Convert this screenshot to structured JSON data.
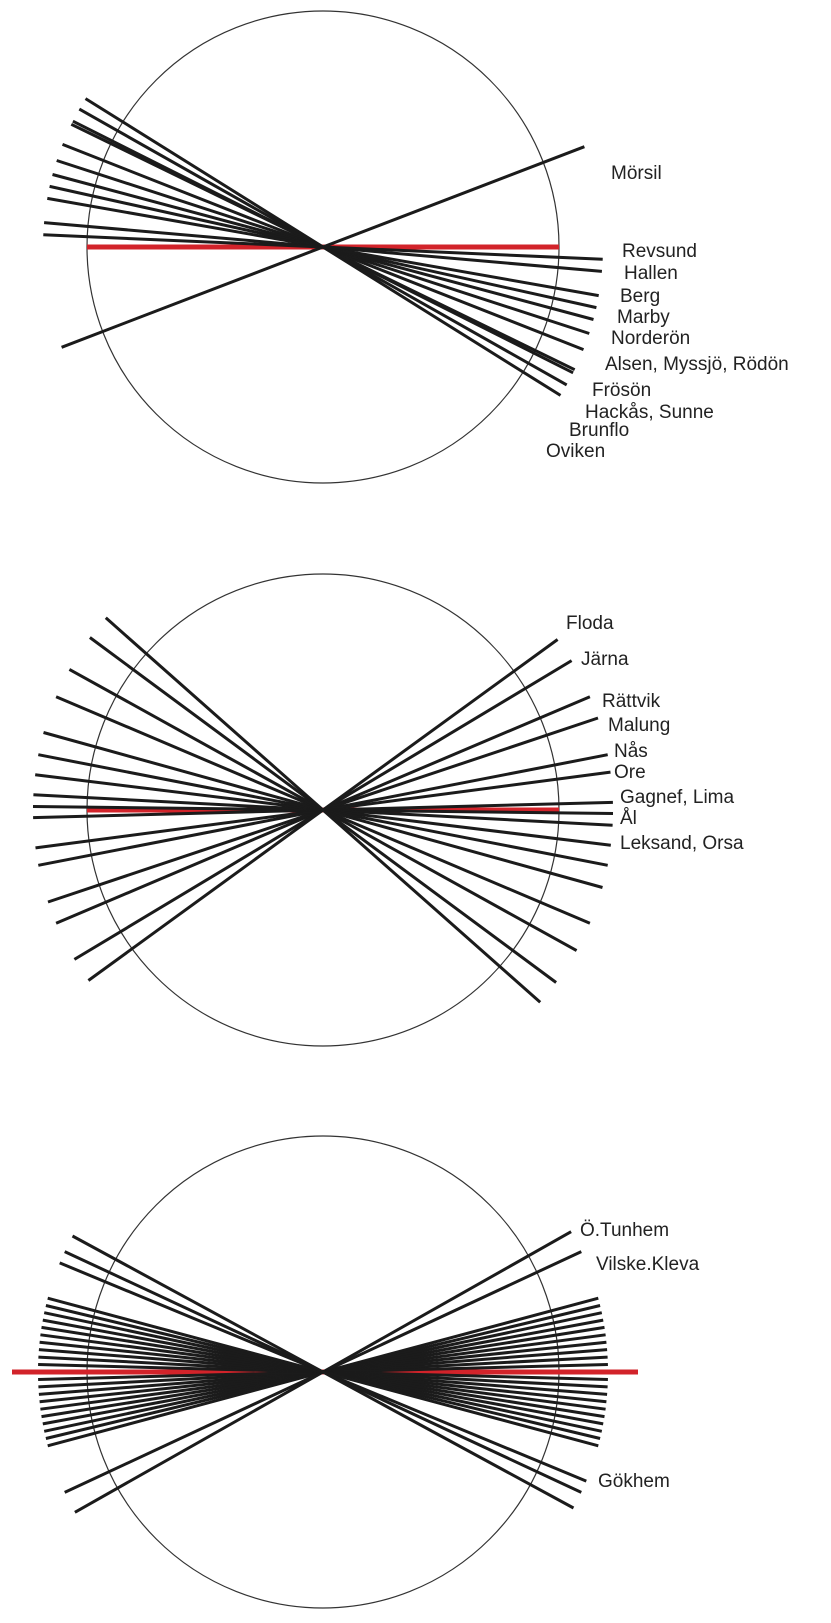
{
  "colors": {
    "line": "#1b1b1b",
    "reference": "#d2232a",
    "circle": "#333333",
    "label": "#222222",
    "background": "#ffffff"
  },
  "diagrams": [
    {
      "id": "jamtland",
      "line_angles_deg": [
        -32,
        -29.5,
        -26.7,
        -26,
        -21.5,
        -18,
        -15,
        -12.5,
        -10,
        -5,
        -2.5,
        21
      ],
      "reference_angle_deg": 0,
      "labels": [
        {
          "text": "Mörsil"
        },
        {
          "text": "Revsund"
        },
        {
          "text": "Hallen"
        },
        {
          "text": "Berg"
        },
        {
          "text": "Marby"
        },
        {
          "text": "Norderön"
        },
        {
          "text": "Alsen, Myssjö, Rödön"
        },
        {
          "text": "Frösön"
        },
        {
          "text": "Hackås, Sunne"
        },
        {
          "text": "Brunflo"
        },
        {
          "text": "Oviken"
        }
      ]
    },
    {
      "id": "dalarna",
      "line_angles_deg": [
        36,
        31,
        23,
        18.5,
        11,
        7.5,
        1.5,
        -0.7,
        -3,
        -7,
        -11,
        -15.5,
        -23,
        -29,
        -36.5,
        -41.5
      ],
      "reference_angle_deg": 0,
      "labels": [
        {
          "text": "Floda"
        },
        {
          "text": "Järna"
        },
        {
          "text": "Rättvik"
        },
        {
          "text": "Malung"
        },
        {
          "text": "Nås"
        },
        {
          "text": "Ore"
        },
        {
          "text": "Gagnef, Lima"
        },
        {
          "text": "Ål"
        },
        {
          "text": "Leksand, Orsa"
        }
      ]
    },
    {
      "id": "vastergotland",
      "line_angles_deg": [
        29.5,
        25,
        15,
        13.5,
        12,
        10.5,
        9,
        7.5,
        6,
        4.5,
        3,
        1.5,
        -1.5,
        -3,
        -4.5,
        -6,
        -7.5,
        -9,
        -10.5,
        -12,
        -13.5,
        -15,
        -22.5,
        -25,
        -28.5
      ],
      "reference_angle_deg": 0,
      "labels": [
        {
          "text": "Ö.Tunhem"
        },
        {
          "text": "Vilske.Kleva"
        },
        {
          "text": "Gökhem"
        }
      ]
    }
  ]
}
